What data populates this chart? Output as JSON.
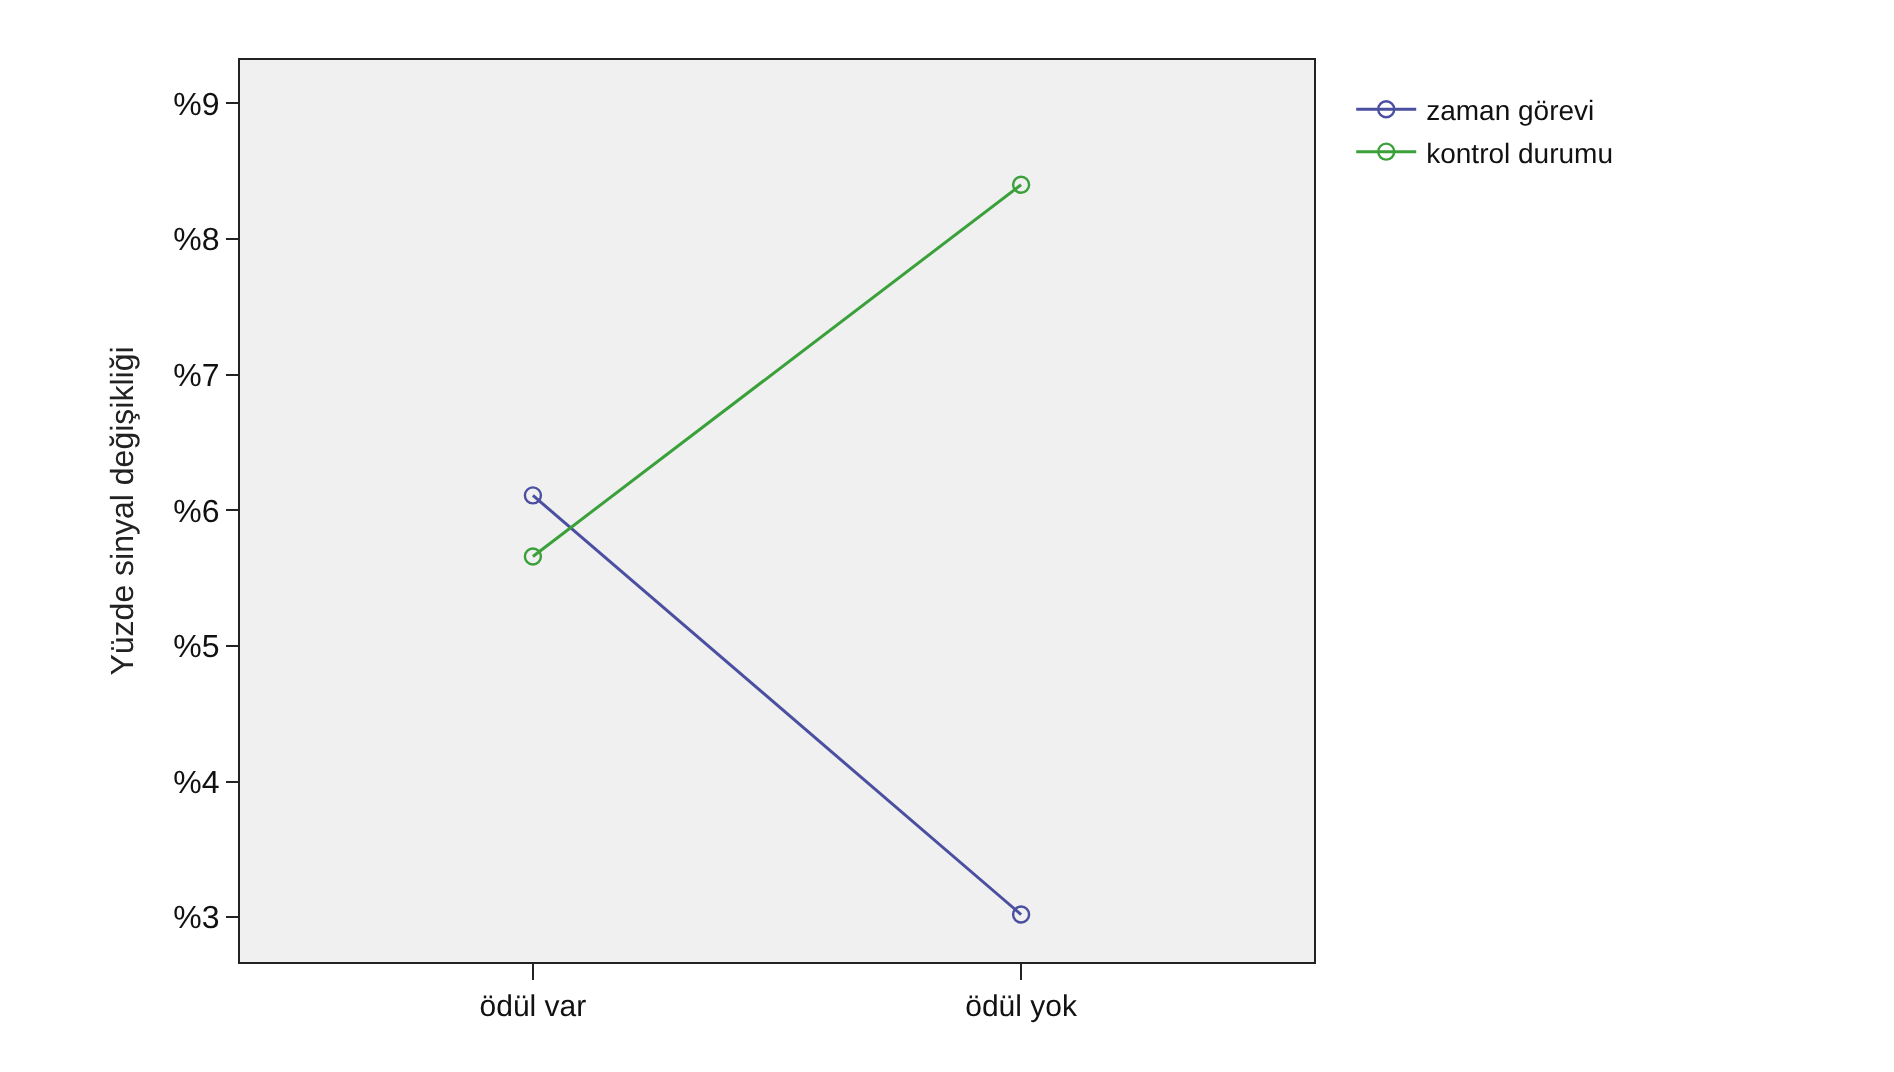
{
  "chart_data": {
    "type": "line",
    "ylabel": "Yüzde sinyal değişikliği",
    "categories": [
      "ödül var",
      "ödül yok"
    ],
    "series": [
      {
        "name": "zaman görevi",
        "color": "#4b4fa0",
        "values": [
          6.11,
          3.02
        ]
      },
      {
        "name": "kontrol durumu",
        "color": "#3aa03a",
        "values": [
          5.66,
          8.4
        ]
      }
    ],
    "ylim": [
      2.67,
      9.32
    ],
    "yticks": [
      {
        "value": 3,
        "label": "%3"
      },
      {
        "value": 4,
        "label": "%4"
      },
      {
        "value": 5,
        "label": "%5"
      },
      {
        "value": 6,
        "label": "%6"
      },
      {
        "value": 7,
        "label": "%7"
      },
      {
        "value": 8,
        "label": "%8"
      },
      {
        "value": 9,
        "label": "%9"
      }
    ],
    "grid": false,
    "legend": "top right",
    "marker": "circle",
    "line_style": "solid"
  }
}
